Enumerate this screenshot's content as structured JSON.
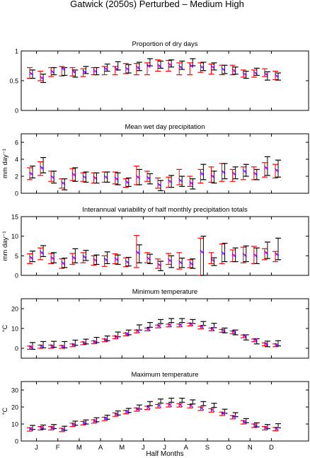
{
  "figure": {
    "title": "Gatwick (2050s) Perturbed – Medium High",
    "xlabel": "Half Months",
    "month_labels": [
      "J",
      "F",
      "M",
      "A",
      "M",
      "J",
      "J",
      "A",
      "S",
      "O",
      "N",
      "D"
    ]
  },
  "colors": {
    "red": "#ff0000",
    "black": "#000000",
    "blue": "#0000ff",
    "magenta": "#ff00ff"
  },
  "chart_data": [
    {
      "type": "errorbar",
      "title": "Proportion of dry days",
      "ylabel": "",
      "ylim": [
        0,
        1
      ],
      "yticks": [
        0,
        0.5,
        1
      ],
      "x": [
        1,
        2,
        3,
        4,
        5,
        6,
        7,
        8,
        9,
        10,
        11,
        12,
        13,
        14,
        15,
        16,
        17,
        18,
        19,
        20,
        21,
        22,
        23,
        24
      ],
      "series": [
        {
          "style": "red",
          "mid": [
            0.64,
            0.58,
            0.64,
            0.67,
            0.65,
            0.63,
            0.66,
            0.68,
            0.67,
            0.7,
            0.71,
            0.7,
            0.74,
            0.75,
            0.71,
            0.7,
            0.73,
            0.7,
            0.68,
            0.68,
            0.62,
            0.62,
            0.63,
            0.58
          ],
          "low": [
            0.54,
            0.5,
            0.57,
            0.58,
            0.58,
            0.57,
            0.6,
            0.6,
            0.6,
            0.62,
            0.6,
            0.6,
            0.66,
            0.66,
            0.6,
            0.6,
            0.64,
            0.61,
            0.6,
            0.6,
            0.56,
            0.56,
            0.57,
            0.52
          ],
          "high": [
            0.72,
            0.66,
            0.72,
            0.74,
            0.72,
            0.7,
            0.72,
            0.74,
            0.74,
            0.79,
            0.79,
            0.8,
            0.85,
            0.84,
            0.8,
            0.8,
            0.8,
            0.78,
            0.76,
            0.76,
            0.68,
            0.68,
            0.7,
            0.66
          ]
        },
        {
          "style": "black",
          "mid": [
            0.61,
            0.54,
            0.66,
            0.66,
            0.62,
            0.68,
            0.66,
            0.72,
            0.75,
            0.7,
            0.74,
            0.81,
            0.77,
            0.79,
            0.76,
            0.81,
            0.74,
            0.74,
            0.69,
            0.67,
            0.6,
            0.65,
            0.58,
            0.57
          ],
          "low": [
            0.54,
            0.47,
            0.6,
            0.59,
            0.56,
            0.62,
            0.6,
            0.66,
            0.68,
            0.63,
            0.67,
            0.75,
            0.71,
            0.73,
            0.69,
            0.75,
            0.67,
            0.68,
            0.62,
            0.61,
            0.54,
            0.59,
            0.51,
            0.51
          ],
          "high": [
            0.68,
            0.61,
            0.72,
            0.72,
            0.68,
            0.74,
            0.72,
            0.78,
            0.82,
            0.77,
            0.81,
            0.87,
            0.83,
            0.85,
            0.83,
            0.87,
            0.81,
            0.8,
            0.76,
            0.73,
            0.66,
            0.71,
            0.65,
            0.63
          ]
        },
        {
          "style": "marker",
          "mid": [
            0.62,
            0.55,
            0.65,
            0.7,
            0.65,
            0.65,
            0.66,
            0.7,
            0.7,
            0.7,
            0.72,
            0.75,
            0.75,
            0.77,
            0.73,
            0.75,
            0.73,
            0.73,
            0.69,
            0.67,
            0.61,
            0.63,
            0.61,
            0.58
          ]
        }
      ]
    },
    {
      "type": "errorbar",
      "title": "Mean wet day precipitation",
      "ylabel": "mm day⁻¹",
      "ylim": [
        0,
        7
      ],
      "yticks": [
        0,
        2,
        4,
        6
      ],
      "x": [
        1,
        2,
        3,
        4,
        5,
        6,
        7,
        8,
        9,
        10,
        11,
        12,
        13,
        14,
        15,
        16,
        17,
        18,
        19,
        20,
        21,
        22,
        23,
        24
      ],
      "series": [
        {
          "style": "red",
          "mid": [
            2.3,
            2.9,
            2.0,
            1.2,
            2.2,
            1.9,
            1.8,
            1.9,
            1.8,
            1.2,
            2.0,
            2.0,
            1.2,
            1.3,
            1.9,
            1.4,
            2.0,
            2.2,
            2.3,
            2.1,
            2.4,
            2.4,
            2.8,
            2.6
          ],
          "low": [
            1.6,
            2.1,
            1.4,
            0.6,
            1.5,
            1.4,
            1.2,
            1.3,
            1.1,
            0.7,
            1.0,
            1.4,
            0.6,
            0.7,
            1.0,
            0.8,
            1.2,
            1.3,
            1.4,
            1.4,
            1.6,
            1.6,
            1.9,
            1.8
          ],
          "high": [
            3.0,
            3.7,
            2.6,
            1.7,
            2.9,
            2.4,
            2.4,
            2.5,
            2.5,
            1.7,
            3.2,
            2.6,
            1.8,
            1.9,
            2.8,
            2.0,
            2.8,
            3.1,
            3.5,
            2.8,
            3.1,
            3.1,
            3.6,
            3.4
          ]
        },
        {
          "style": "black",
          "mid": [
            2.5,
            3.3,
            1.9,
            1.1,
            2.2,
            1.9,
            1.8,
            1.9,
            1.7,
            1.3,
            1.9,
            1.7,
            0.9,
            1.4,
            1.4,
            1.1,
            2.5,
            1.9,
            2.6,
            2.4,
            2.7,
            2.2,
            3.2,
            2.9
          ],
          "low": [
            1.8,
            2.4,
            1.2,
            0.4,
            1.4,
            1.3,
            1.2,
            1.3,
            1.0,
            0.8,
            1.0,
            1.1,
            0.3,
            0.7,
            0.8,
            0.5,
            1.6,
            1.2,
            1.7,
            1.7,
            2.0,
            1.6,
            2.1,
            1.9
          ],
          "high": [
            3.2,
            4.2,
            2.6,
            1.7,
            3.0,
            2.5,
            2.4,
            2.5,
            2.4,
            1.8,
            2.8,
            2.3,
            1.5,
            2.1,
            2.0,
            1.7,
            3.4,
            2.6,
            3.5,
            3.1,
            3.4,
            2.8,
            4.3,
            3.9
          ]
        },
        {
          "style": "marker",
          "mid": [
            2.3,
            3.0,
            1.9,
            1.2,
            2.2,
            1.9,
            1.8,
            1.9,
            1.7,
            1.3,
            1.9,
            1.8,
            1.0,
            1.4,
            1.5,
            1.2,
            2.3,
            2.0,
            2.5,
            2.3,
            2.6,
            2.3,
            3.0,
            2.7
          ]
        }
      ]
    },
    {
      "type": "errorbar",
      "title": "Interannual variability of half monthly precipitation totals",
      "ylabel": "mm day⁻¹",
      "ylim": [
        0,
        15
      ],
      "yticks": [
        0,
        5,
        10,
        15
      ],
      "x": [
        1,
        2,
        3,
        4,
        5,
        6,
        7,
        8,
        9,
        10,
        11,
        12,
        13,
        14,
        15,
        16,
        17,
        18,
        19,
        20,
        21,
        22,
        23,
        24
      ],
      "series": [
        {
          "style": "red",
          "mid": [
            4.2,
            5.5,
            4.3,
            3.0,
            4.1,
            4.5,
            3.8,
            3.6,
            4.2,
            3.3,
            6.0,
            4.5,
            3.0,
            4.2,
            3.5,
            3.0,
            5.2,
            4.3,
            5.4,
            5.0,
            5.0,
            5.2,
            5.4,
            4.8
          ],
          "low": [
            3.0,
            4.0,
            3.0,
            1.8,
            2.8,
            3.2,
            2.6,
            2.3,
            3.0,
            2.2,
            2.0,
            3.2,
            1.8,
            2.8,
            1.6,
            2.0,
            0.0,
            3.0,
            3.0,
            3.5,
            3.2,
            3.0,
            4.0,
            3.5
          ],
          "high": [
            5.5,
            7.0,
            5.6,
            4.2,
            5.6,
            5.8,
            5.0,
            5.0,
            5.5,
            4.5,
            10.2,
            5.8,
            4.2,
            5.6,
            5.8,
            4.0,
            9.5,
            5.8,
            8.0,
            6.5,
            7.2,
            7.4,
            6.8,
            6.1
          ]
        },
        {
          "style": "black",
          "mid": [
            4.8,
            6.2,
            4.5,
            3.2,
            5.0,
            5.0,
            4.0,
            4.5,
            4.0,
            3.5,
            5.5,
            4.2,
            2.4,
            3.5,
            3.2,
            3.0,
            6.2,
            3.5,
            5.8,
            5.2,
            5.5,
            5.0,
            6.2,
            6.0
          ],
          "low": [
            3.5,
            4.8,
            3.2,
            2.0,
            3.2,
            3.8,
            2.8,
            3.0,
            2.8,
            2.4,
            3.2,
            3.0,
            1.2,
            2.0,
            2.0,
            1.8,
            0.0,
            2.5,
            3.5,
            3.5,
            3.5,
            3.0,
            4.3,
            4.0
          ],
          "high": [
            6.2,
            7.6,
            5.8,
            4.4,
            6.8,
            6.4,
            5.2,
            6.0,
            5.2,
            4.6,
            7.8,
            5.4,
            3.6,
            5.0,
            4.4,
            4.2,
            10.0,
            4.5,
            8.2,
            7.0,
            7.5,
            7.0,
            8.5,
            9.5
          ]
        },
        {
          "style": "marker",
          "mid": [
            4.5,
            5.8,
            4.4,
            3.1,
            4.5,
            4.7,
            3.9,
            4.0,
            4.1,
            3.4,
            5.8,
            4.3,
            2.7,
            3.8,
            3.3,
            3.0,
            6.0,
            3.9,
            5.6,
            5.1,
            5.2,
            5.1,
            5.8,
            5.4
          ]
        }
      ]
    },
    {
      "type": "errorbar",
      "title": "Minimum temperature",
      "ylabel": "°C",
      "ylim": [
        -5,
        25
      ],
      "yticks": [
        0,
        10,
        20
      ],
      "x": [
        1,
        2,
        3,
        4,
        5,
        6,
        7,
        8,
        9,
        10,
        11,
        12,
        13,
        14,
        15,
        16,
        17,
        18,
        19,
        20,
        21,
        22,
        23,
        24
      ],
      "series": [
        {
          "style": "red",
          "mid": [
            0.3,
            0.8,
            0.8,
            0.7,
            1.5,
            2.5,
            3.0,
            4.0,
            5.5,
            7.0,
            8.5,
            9.5,
            11.0,
            11.5,
            11.5,
            12.0,
            10.5,
            9.5,
            8.8,
            8.0,
            6.0,
            4.0,
            2.0,
            1.5
          ],
          "low": [
            -0.5,
            0.0,
            0.0,
            0.0,
            0.8,
            1.8,
            2.3,
            3.3,
            4.8,
            6.3,
            7.8,
            8.8,
            10.3,
            10.8,
            10.8,
            11.3,
            9.8,
            8.8,
            8.1,
            7.3,
            5.3,
            3.3,
            1.3,
            0.8
          ],
          "high": [
            1.1,
            1.6,
            1.6,
            1.4,
            2.2,
            3.2,
            3.7,
            4.7,
            6.2,
            7.7,
            9.2,
            10.2,
            11.7,
            12.2,
            12.2,
            12.7,
            11.2,
            10.2,
            9.5,
            8.7,
            6.7,
            4.7,
            2.7,
            2.2
          ]
        },
        {
          "style": "black",
          "mid": [
            1.2,
            1.8,
            2.0,
            1.8,
            2.8,
            3.4,
            4.2,
            5.0,
            7.0,
            8.0,
            10.5,
            11.8,
            13.5,
            14.0,
            14.0,
            13.5,
            12.5,
            11.5,
            9.0,
            8.0,
            5.5,
            3.5,
            2.2,
            2.5
          ],
          "low": [
            -0.5,
            0.2,
            0.5,
            0.2,
            1.5,
            2.2,
            2.9,
            3.8,
            5.8,
            6.8,
            9.2,
            10.6,
            12.5,
            13.0,
            13.0,
            12.5,
            11.5,
            10.4,
            7.8,
            6.8,
            4.2,
            2.2,
            0.8,
            1.2
          ],
          "high": [
            2.9,
            3.4,
            3.5,
            3.4,
            4.1,
            4.6,
            5.5,
            6.2,
            8.2,
            9.2,
            11.8,
            13.0,
            14.5,
            15.0,
            15.0,
            14.5,
            13.5,
            12.6,
            10.2,
            9.2,
            6.8,
            4.8,
            3.6,
            3.8
          ]
        },
        {
          "style": "marker",
          "mid": [
            0.5,
            1.0,
            1.0,
            0.8,
            1.7,
            2.7,
            3.2,
            4.2,
            5.7,
            7.2,
            8.7,
            9.7,
            11.2,
            11.7,
            11.7,
            12.2,
            10.7,
            9.7,
            9.0,
            8.2,
            6.2,
            4.2,
            2.2,
            1.7
          ]
        }
      ]
    },
    {
      "type": "errorbar",
      "title": "Maximum temperature",
      "ylabel": "°C",
      "ylim": [
        0,
        35
      ],
      "yticks": [
        0,
        10,
        20,
        30
      ],
      "x": [
        1,
        2,
        3,
        4,
        5,
        6,
        7,
        8,
        9,
        10,
        11,
        12,
        13,
        14,
        15,
        16,
        17,
        18,
        19,
        20,
        21,
        22,
        23,
        24
      ],
      "series": [
        {
          "style": "red",
          "mid": [
            6.8,
            7.5,
            7.5,
            6.5,
            9.5,
            10.5,
            11.5,
            13.0,
            15.5,
            17.0,
            18.5,
            19.5,
            20.5,
            21.0,
            21.0,
            20.5,
            19.0,
            18.0,
            16.0,
            14.0,
            11.0,
            9.0,
            7.5,
            7.0
          ],
          "low": [
            5.8,
            6.5,
            6.5,
            5.5,
            8.5,
            9.5,
            10.5,
            12.0,
            14.5,
            16.0,
            17.5,
            18.5,
            19.5,
            20.0,
            20.0,
            19.5,
            18.0,
            17.0,
            15.0,
            13.0,
            10.0,
            8.0,
            6.5,
            6.0
          ],
          "high": [
            7.8,
            8.5,
            8.5,
            7.5,
            10.5,
            11.5,
            12.5,
            14.0,
            16.5,
            18.0,
            19.5,
            20.5,
            21.5,
            22.0,
            22.0,
            21.5,
            20.0,
            19.0,
            17.0,
            15.0,
            12.0,
            10.0,
            8.5,
            8.0
          ]
        },
        {
          "style": "black",
          "mid": [
            8.0,
            8.2,
            8.5,
            7.5,
            10.5,
            11.2,
            12.5,
            14.0,
            16.5,
            18.0,
            20.0,
            22.0,
            23.5,
            24.0,
            24.0,
            23.0,
            22.0,
            21.0,
            17.5,
            15.5,
            12.0,
            9.5,
            8.5,
            9.0
          ],
          "low": [
            6.8,
            7.0,
            7.3,
            6.3,
            9.3,
            10.0,
            11.3,
            12.8,
            15.3,
            16.8,
            18.8,
            20.8,
            22.3,
            22.8,
            22.8,
            21.8,
            20.8,
            19.8,
            16.3,
            14.3,
            10.8,
            8.3,
            7.3,
            7.8
          ],
          "high": [
            9.2,
            9.4,
            9.7,
            8.7,
            11.7,
            12.4,
            13.7,
            15.2,
            17.7,
            19.2,
            21.2,
            23.2,
            24.7,
            25.2,
            25.2,
            24.2,
            23.2,
            22.2,
            18.7,
            16.7,
            13.2,
            10.7,
            9.7,
            10.2
          ]
        },
        {
          "style": "marker",
          "mid": [
            7.0,
            7.7,
            7.7,
            6.7,
            9.7,
            10.7,
            11.7,
            13.2,
            15.7,
            17.2,
            18.7,
            19.7,
            20.7,
            21.2,
            21.2,
            20.7,
            19.2,
            18.2,
            16.2,
            14.2,
            11.2,
            9.2,
            7.7,
            7.2
          ]
        }
      ]
    }
  ]
}
